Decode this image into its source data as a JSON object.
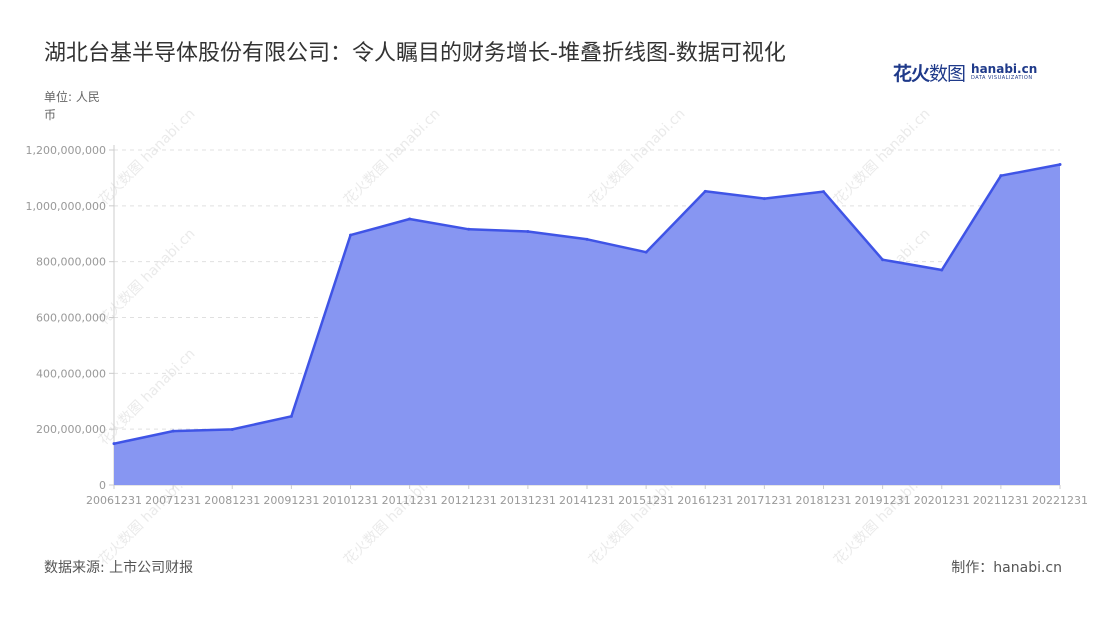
{
  "title": "湖北台基半导体股份有限公司：令人瞩目的财务增长-堆叠折线图-数据可视化",
  "unit": "单位: 人民币",
  "source": "数据来源: 上市公司财报",
  "credit": "制作：hanabi.cn",
  "logo": {
    "cn_bold": "花火",
    "cn_light": "数图",
    "en": "hanabi.cn",
    "en_sub": "DATA VISUALIZATION",
    "watermark": "花火数图 hanabi.cn"
  },
  "colors": {
    "fill": "#8796f2",
    "line": "#3f54e6",
    "grid": "#e0e0e0"
  },
  "chart_data": {
    "type": "area",
    "title": "湖北台基半导体股份有限公司：令人瞩目的财务增长-堆叠折线图-数据可视化",
    "xlabel": "",
    "ylabel": "单位: 人民币",
    "ylim": [
      0,
      1200000000
    ],
    "yticks": [
      0,
      200000000,
      400000000,
      600000000,
      800000000,
      1000000000,
      1200000000
    ],
    "ytick_labels": [
      "0",
      "200,000,000",
      "400,000,000",
      "600,000,000",
      "800,000,000",
      "1,000,000,000",
      "1,200,000,000"
    ],
    "grid": true,
    "categories": [
      "20061231",
      "20071231",
      "20081231",
      "20091231",
      "20101231",
      "20111231",
      "20121231",
      "20131231",
      "20141231",
      "20151231",
      "20161231",
      "20171231",
      "20181231",
      "20191231",
      "20201231",
      "20211231",
      "20221231"
    ],
    "series": [
      {
        "values": [
          148000000,
          193000000,
          199000000,
          246000000,
          895000000,
          953000000,
          916000000,
          908000000,
          880000000,
          834000000,
          1052000000,
          1026000000,
          1051000000,
          807000000,
          770000000,
          1108000000,
          1148000000
        ]
      }
    ]
  }
}
